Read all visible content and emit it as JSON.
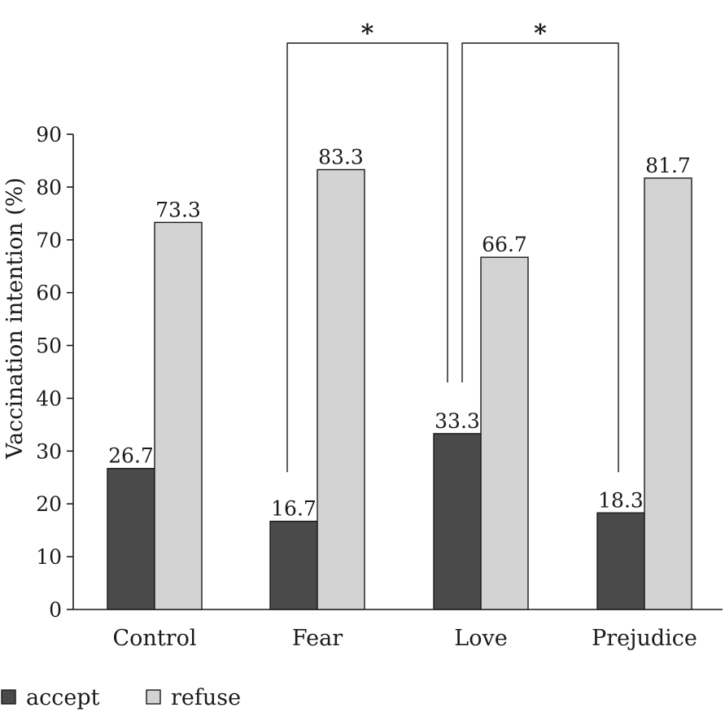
{
  "chart_data": {
    "type": "bar",
    "title": "",
    "xlabel": "",
    "ylabel": "Vaccination intention (%)",
    "ylim": [
      0,
      90
    ],
    "yticks": [
      0,
      10,
      20,
      30,
      40,
      50,
      60,
      70,
      80,
      90
    ],
    "grid": false,
    "categories": [
      "Control",
      "Fear",
      "Love",
      "Prejudice"
    ],
    "series": [
      {
        "name": "accept",
        "color": "#4a4a4a",
        "values": [
          26.7,
          16.7,
          33.3,
          18.3
        ],
        "labels": [
          "26.7",
          "16.7",
          "33.3",
          "18.3"
        ]
      },
      {
        "name": "refuse",
        "color": "#d3d3d3",
        "values": [
          73.3,
          83.3,
          66.7,
          81.7
        ],
        "labels": [
          "73.3",
          "83.3",
          "66.7",
          "81.7"
        ]
      }
    ],
    "legend_position": "bottom-left",
    "annotations": [
      {
        "type": "significance",
        "from_category": "Fear",
        "to_category": "Love",
        "series": "accept",
        "label": "*"
      },
      {
        "type": "significance",
        "from_category": "Love",
        "to_category": "Prejudice",
        "series": "accept",
        "label": "*"
      }
    ]
  }
}
